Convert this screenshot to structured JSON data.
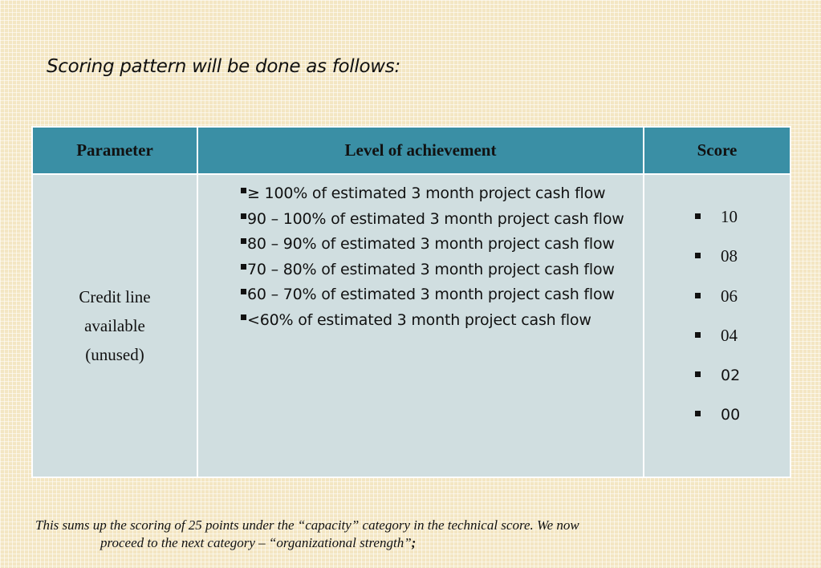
{
  "title": "Scoring pattern will be done as follows:",
  "table": {
    "headers": {
      "parameter": "Parameter",
      "level": "Level of achievement",
      "score": "Score"
    },
    "parameter_lines": [
      "Credit line",
      "available",
      "(unused)"
    ],
    "levels": [
      "≥ 100% of estimated 3 month project cash flow",
      "90 – 100% of estimated 3 month project cash flow",
      "80 – 90% of estimated 3 month project cash flow",
      "70 – 80% of estimated 3 month project cash flow",
      "60 – 70% of estimated 3 month project cash flow",
      "<60% of estimated 3 month project cash flow"
    ],
    "scores": [
      "10",
      "08",
      "06",
      "04",
      "02",
      "00"
    ]
  },
  "footnote": {
    "line1": "This sums up the scoring of 25 points under the “capacity” category in the technical score. We now",
    "line2": "proceed to the next category – “organizational strength”",
    "line2_end": ";"
  },
  "colors": {
    "header_bg": "#3a8fa5",
    "body_bg": "#d0dee0",
    "page_bg": "#f3e6c3"
  }
}
